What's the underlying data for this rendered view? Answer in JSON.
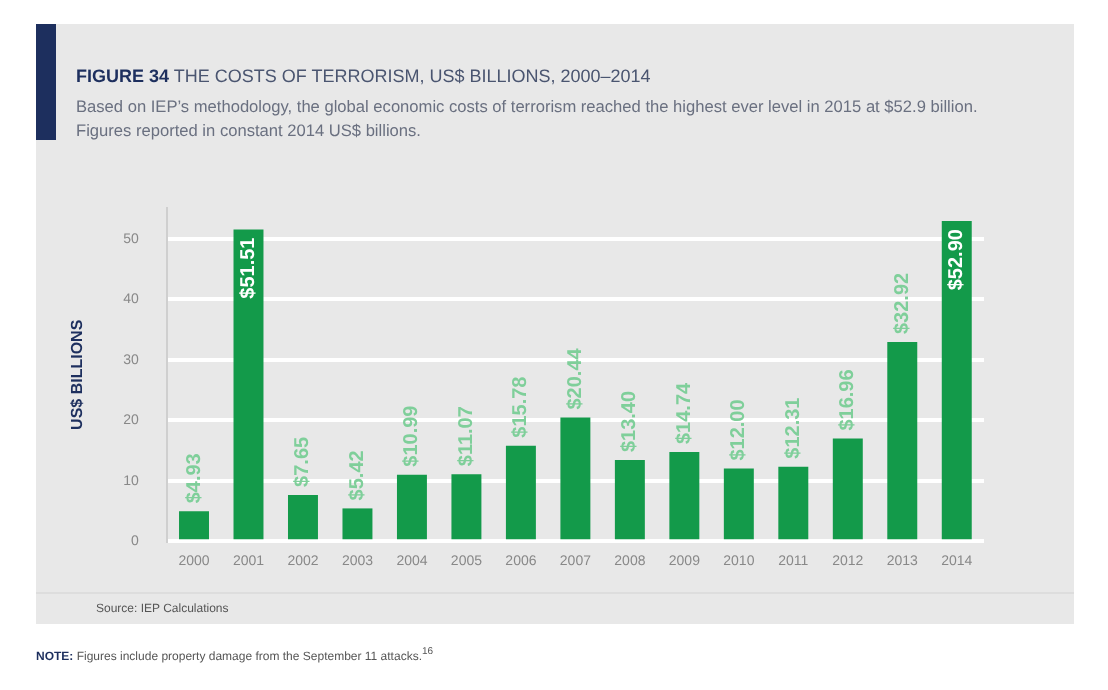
{
  "chart_data": {
    "type": "bar",
    "title": "FIGURE 34 THE COSTS OF TERRORISM, US$ BILLIONS, 2000–2014",
    "subtitle": "Based on IEP’s methodology, the global economic costs of terrorism reached the highest ever level in 2015 at $52.9 billion. Figures reported in constant 2014 US$ billions.",
    "ylabel": "US$ BILLIONS",
    "categories": [
      "2000",
      "2001",
      "2002",
      "2003",
      "2004",
      "2005",
      "2006",
      "2007",
      "2008",
      "2009",
      "2010",
      "2011",
      "2012",
      "2013",
      "2014"
    ],
    "values": [
      4.93,
      51.51,
      7.65,
      5.42,
      10.99,
      11.07,
      15.78,
      20.44,
      13.4,
      14.74,
      12.0,
      12.31,
      16.96,
      32.92,
      52.9
    ],
    "value_labels": [
      "$4.93",
      "$51.51",
      "$7.65",
      "$5.42",
      "$10.99",
      "$11.07",
      "$15.78",
      "$20.44",
      "$13.40",
      "$14.74",
      "$12.00",
      "$12.31",
      "$16.96",
      "$32.92",
      "$52.90"
    ],
    "color": "#139a4a",
    "ylim": [
      0,
      55
    ],
    "yticks": [
      0,
      10,
      20,
      30,
      40,
      50
    ],
    "grid": "y",
    "legend": false,
    "annotations": [
      "Source: IEP Calculations",
      "NOTE: Figures include property damage from the September 11 attacks.$^{16}$"
    ]
  }
}
